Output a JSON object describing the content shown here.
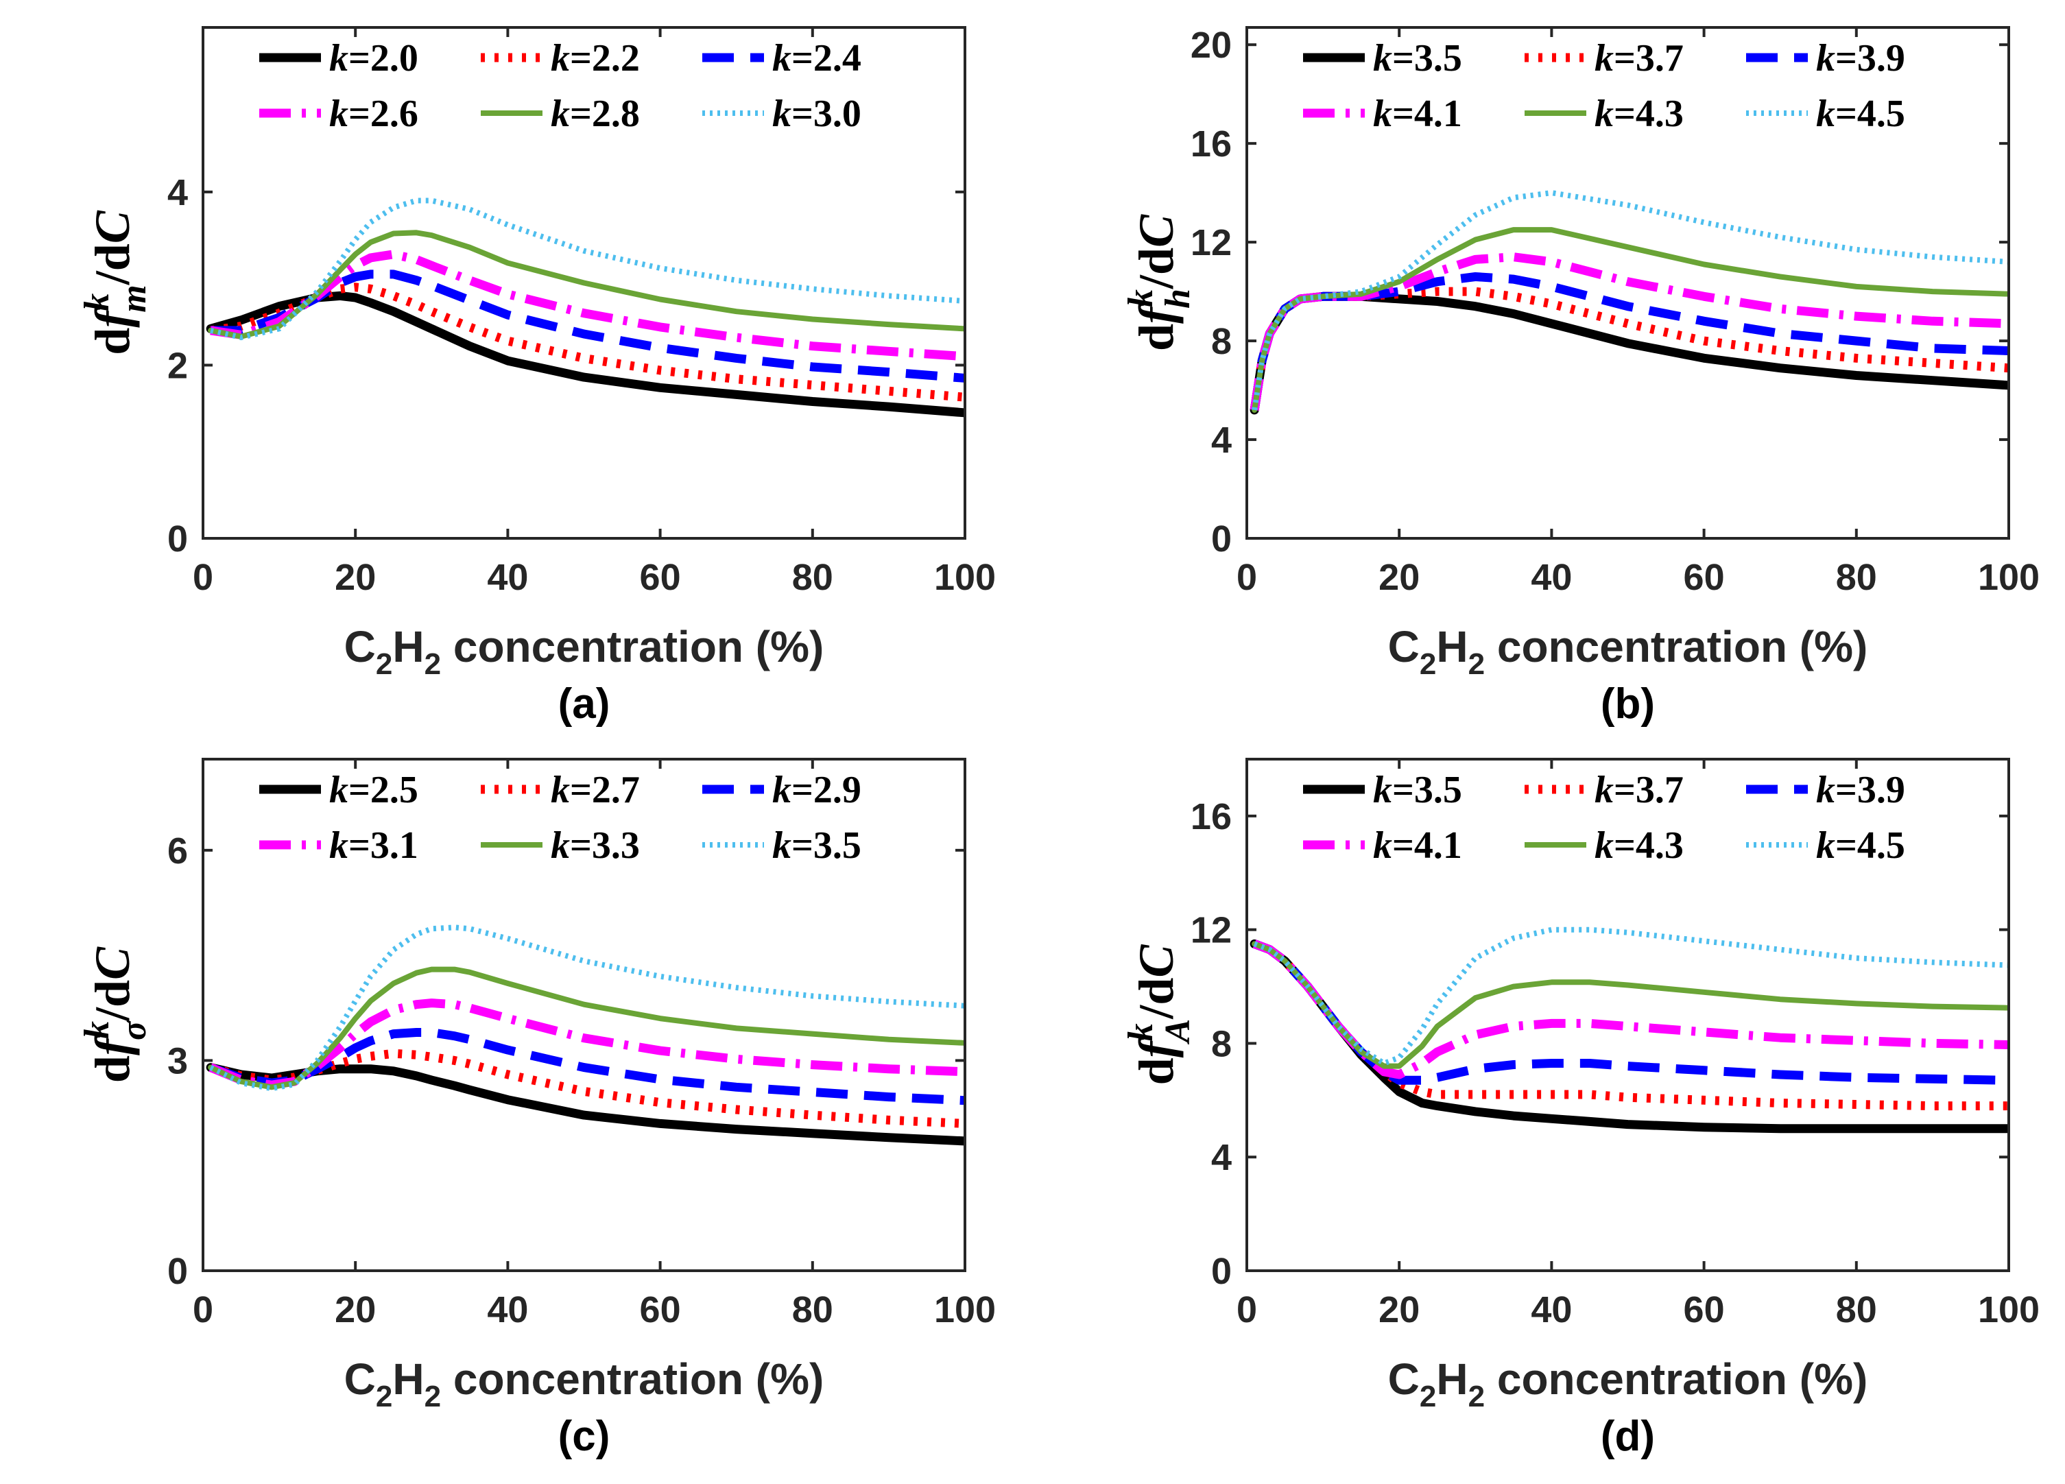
{
  "chart_data": [
    {
      "type": "line",
      "panel_label": "(a)",
      "xlabel": "C2H2 concentration (%)",
      "xlabel_parts": {
        "pre": "C",
        "sub1": "2",
        "mid": "H",
        "sub2": "2",
        "post": " concentration (%)"
      },
      "ylabel": "dfm^k/dC",
      "ylabel_parts": {
        "d1": "d",
        "f": "f",
        "sup": "k",
        "sub": "m",
        "slash": "/d",
        "C": "C"
      },
      "xlim": [
        0,
        100
      ],
      "ylim": [
        0,
        5.9
      ],
      "xticks": [
        0,
        20,
        40,
        60,
        80,
        100
      ],
      "yticks": [
        0,
        2,
        4
      ],
      "x": [
        1,
        5,
        10,
        15,
        18,
        20,
        22,
        25,
        28,
        30,
        35,
        40,
        50,
        60,
        70,
        80,
        90,
        100
      ],
      "series": [
        {
          "name": "k=2.0",
          "k_letter": "k",
          "k_value": "=2.0",
          "color": "#000000",
          "style": "solid",
          "width": 13,
          "values": [
            2.42,
            2.52,
            2.68,
            2.78,
            2.8,
            2.78,
            2.72,
            2.62,
            2.5,
            2.42,
            2.22,
            2.05,
            1.86,
            1.74,
            1.66,
            1.58,
            1.52,
            1.45
          ]
        },
        {
          "name": "k=2.2",
          "k_letter": "k",
          "k_value": "=2.2",
          "color": "#ff0000",
          "style": "dot",
          "width": 13,
          "values": [
            2.4,
            2.45,
            2.6,
            2.78,
            2.88,
            2.9,
            2.88,
            2.8,
            2.7,
            2.62,
            2.44,
            2.28,
            2.08,
            1.94,
            1.84,
            1.77,
            1.7,
            1.63
          ]
        },
        {
          "name": "k=2.4",
          "k_letter": "k",
          "k_value": "=2.4",
          "color": "#0000ff",
          "style": "dash",
          "width": 13,
          "values": [
            2.4,
            2.4,
            2.55,
            2.78,
            2.95,
            3.02,
            3.05,
            3.05,
            2.98,
            2.92,
            2.75,
            2.58,
            2.36,
            2.2,
            2.08,
            1.98,
            1.92,
            1.85
          ]
        },
        {
          "name": "k=2.6",
          "k_letter": "k",
          "k_value": "=2.6",
          "color": "#ff00ff",
          "style": "dashdot",
          "width": 13,
          "values": [
            2.4,
            2.35,
            2.5,
            2.8,
            3.02,
            3.15,
            3.24,
            3.28,
            3.22,
            3.15,
            2.98,
            2.82,
            2.6,
            2.44,
            2.32,
            2.22,
            2.16,
            2.1
          ]
        },
        {
          "name": "k=2.8",
          "k_letter": "k",
          "k_value": "=2.8",
          "color": "#6aa436",
          "style": "solid",
          "width": 8,
          "values": [
            2.4,
            2.33,
            2.45,
            2.82,
            3.1,
            3.28,
            3.42,
            3.52,
            3.53,
            3.5,
            3.36,
            3.18,
            2.95,
            2.76,
            2.62,
            2.53,
            2.47,
            2.42
          ]
        },
        {
          "name": "k=3.0",
          "k_letter": "k",
          "k_value": "=3.0",
          "color": "#4dbeee",
          "style": "fine",
          "width": 8,
          "values": [
            2.4,
            2.32,
            2.42,
            2.85,
            3.2,
            3.45,
            3.65,
            3.82,
            3.9,
            3.9,
            3.8,
            3.62,
            3.32,
            3.12,
            2.98,
            2.88,
            2.8,
            2.74
          ]
        }
      ]
    },
    {
      "type": "line",
      "panel_label": "(b)",
      "xlabel": "C2H2 concentration (%)",
      "xlabel_parts": {
        "pre": "C",
        "sub1": "2",
        "mid": "H",
        "sub2": "2",
        "post": " concentration (%)"
      },
      "ylabel": "dfh^k/dC",
      "ylabel_parts": {
        "d1": "d",
        "f": "f",
        "sup": "k",
        "sub": "h",
        "slash": "/d",
        "C": "C"
      },
      "xlim": [
        0,
        100
      ],
      "ylim": [
        0,
        20.7
      ],
      "xticks": [
        0,
        20,
        40,
        60,
        80,
        100
      ],
      "yticks": [
        0,
        4,
        8,
        12,
        16,
        20
      ],
      "x": [
        1,
        2,
        3,
        5,
        7,
        10,
        15,
        20,
        25,
        30,
        35,
        40,
        50,
        60,
        70,
        80,
        90,
        100
      ],
      "series": [
        {
          "name": "k=3.5",
          "k_letter": "k",
          "k_value": "=3.5",
          "color": "#000000",
          "style": "solid",
          "width": 13,
          "values": [
            5.2,
            7.2,
            8.3,
            9.3,
            9.7,
            9.8,
            9.8,
            9.7,
            9.6,
            9.4,
            9.1,
            8.7,
            7.9,
            7.3,
            6.9,
            6.6,
            6.4,
            6.2
          ]
        },
        {
          "name": "k=3.7",
          "k_letter": "k",
          "k_value": "=3.7",
          "color": "#ff0000",
          "style": "dot",
          "width": 13,
          "values": [
            5.2,
            7.2,
            8.3,
            9.3,
            9.7,
            9.8,
            9.8,
            9.9,
            10.0,
            10.0,
            9.8,
            9.5,
            8.7,
            8.0,
            7.6,
            7.3,
            7.1,
            6.9
          ]
        },
        {
          "name": "k=3.9",
          "k_letter": "k",
          "k_value": "=3.9",
          "color": "#0000ff",
          "style": "dash",
          "width": 13,
          "values": [
            5.2,
            7.2,
            8.3,
            9.3,
            9.7,
            9.8,
            9.8,
            10.0,
            10.4,
            10.6,
            10.5,
            10.2,
            9.4,
            8.8,
            8.3,
            8.0,
            7.7,
            7.6
          ]
        },
        {
          "name": "k=4.1",
          "k_letter": "k",
          "k_value": "=4.1",
          "color": "#ff00ff",
          "style": "dashdot",
          "width": 13,
          "values": [
            5.2,
            7.2,
            8.3,
            9.3,
            9.7,
            9.8,
            9.8,
            10.2,
            10.8,
            11.3,
            11.4,
            11.2,
            10.4,
            9.8,
            9.3,
            9.0,
            8.8,
            8.7
          ]
        },
        {
          "name": "k=4.3",
          "k_letter": "k",
          "k_value": "=4.3",
          "color": "#6aa436",
          "style": "solid",
          "width": 8,
          "values": [
            5.2,
            7.2,
            8.3,
            9.3,
            9.7,
            9.8,
            9.9,
            10.4,
            11.3,
            12.1,
            12.5,
            12.5,
            11.8,
            11.1,
            10.6,
            10.2,
            10.0,
            9.9
          ]
        },
        {
          "name": "k=4.5",
          "k_letter": "k",
          "k_value": "=4.5",
          "color": "#4dbeee",
          "style": "fine",
          "width": 8,
          "values": [
            5.2,
            7.2,
            8.3,
            9.3,
            9.7,
            9.8,
            10.0,
            10.6,
            11.9,
            13.1,
            13.8,
            14.0,
            13.5,
            12.8,
            12.2,
            11.7,
            11.4,
            11.2
          ]
        }
      ]
    },
    {
      "type": "line",
      "panel_label": "(c)",
      "xlabel": "C2H2 concentration (%)",
      "xlabel_parts": {
        "pre": "C",
        "sub1": "2",
        "mid": "H",
        "sub2": "2",
        "post": " concentration (%)"
      },
      "ylabel": "dfσ^k/dC",
      "ylabel_parts": {
        "d1": "d",
        "f": "f",
        "sup": "k",
        "sub": "σ",
        "slash": "/d",
        "C": "C"
      },
      "xlim": [
        0,
        100
      ],
      "ylim": [
        0,
        7.3
      ],
      "xticks": [
        0,
        20,
        40,
        60,
        80,
        100
      ],
      "yticks": [
        0,
        3,
        6
      ],
      "x": [
        1,
        5,
        9,
        12,
        15,
        18,
        20,
        22,
        25,
        28,
        30,
        33,
        35,
        40,
        50,
        60,
        70,
        80,
        90,
        100
      ],
      "series": [
        {
          "name": "k=2.5",
          "k_letter": "k",
          "k_value": "=2.5",
          "color": "#000000",
          "style": "solid",
          "width": 13,
          "values": [
            2.9,
            2.8,
            2.75,
            2.8,
            2.85,
            2.88,
            2.88,
            2.88,
            2.85,
            2.78,
            2.72,
            2.64,
            2.58,
            2.44,
            2.22,
            2.1,
            2.02,
            1.96,
            1.9,
            1.85
          ]
        },
        {
          "name": "k=2.7",
          "k_letter": "k",
          "k_value": "=2.7",
          "color": "#ff0000",
          "style": "dot",
          "width": 13,
          "values": [
            2.9,
            2.78,
            2.72,
            2.76,
            2.86,
            2.96,
            3.02,
            3.06,
            3.1,
            3.08,
            3.05,
            3.0,
            2.95,
            2.8,
            2.56,
            2.4,
            2.3,
            2.22,
            2.15,
            2.1
          ]
        },
        {
          "name": "k=2.9",
          "k_letter": "k",
          "k_value": "=2.9",
          "color": "#0000ff",
          "style": "dash",
          "width": 13,
          "values": [
            2.9,
            2.75,
            2.68,
            2.72,
            2.88,
            3.05,
            3.18,
            3.28,
            3.38,
            3.4,
            3.4,
            3.35,
            3.3,
            3.15,
            2.9,
            2.73,
            2.62,
            2.55,
            2.48,
            2.43
          ]
        },
        {
          "name": "k=3.1",
          "k_letter": "k",
          "k_value": "=3.1",
          "color": "#ff00ff",
          "style": "dashdot",
          "width": 13,
          "values": [
            2.9,
            2.72,
            2.65,
            2.7,
            2.92,
            3.18,
            3.38,
            3.55,
            3.72,
            3.8,
            3.82,
            3.8,
            3.75,
            3.6,
            3.32,
            3.14,
            3.02,
            2.94,
            2.88,
            2.84
          ]
        },
        {
          "name": "k=3.3",
          "k_letter": "k",
          "k_value": "=3.3",
          "color": "#6aa436",
          "style": "solid",
          "width": 8,
          "values": [
            2.9,
            2.7,
            2.62,
            2.68,
            2.96,
            3.32,
            3.6,
            3.85,
            4.1,
            4.25,
            4.3,
            4.3,
            4.26,
            4.1,
            3.8,
            3.6,
            3.46,
            3.38,
            3.3,
            3.25
          ]
        },
        {
          "name": "k=3.5",
          "k_letter": "k",
          "k_value": "=3.5",
          "color": "#4dbeee",
          "style": "fine",
          "width": 8,
          "values": [
            2.9,
            2.68,
            2.6,
            2.66,
            3.0,
            3.48,
            3.85,
            4.2,
            4.58,
            4.8,
            4.88,
            4.9,
            4.88,
            4.74,
            4.42,
            4.2,
            4.04,
            3.92,
            3.84,
            3.78
          ]
        }
      ]
    },
    {
      "type": "line",
      "panel_label": "(d)",
      "xlabel": "C2H2 concentration (%)",
      "xlabel_parts": {
        "pre": "C",
        "sub1": "2",
        "mid": "H",
        "sub2": "2",
        "post": " concentration (%)"
      },
      "ylabel": "dfA^k/dC",
      "ylabel_parts": {
        "d1": "d",
        "f": "f",
        "sup": "k",
        "sub": "A",
        "slash": "/d",
        "C": "C"
      },
      "xlim": [
        0,
        100
      ],
      "ylim": [
        0,
        18
      ],
      "xticks": [
        0,
        20,
        40,
        60,
        80,
        100
      ],
      "yticks": [
        0,
        4,
        8,
        12,
        16
      ],
      "x": [
        1,
        3,
        5,
        8,
        10,
        12,
        15,
        18,
        20,
        23,
        25,
        30,
        35,
        40,
        45,
        50,
        60,
        70,
        80,
        90,
        100
      ],
      "series": [
        {
          "name": "k=3.5",
          "k_letter": "k",
          "k_value": "=3.5",
          "color": "#000000",
          "style": "solid",
          "width": 13,
          "values": [
            11.5,
            11.3,
            10.9,
            10.0,
            9.3,
            8.6,
            7.6,
            6.8,
            6.3,
            5.9,
            5.8,
            5.6,
            5.45,
            5.35,
            5.25,
            5.15,
            5.05,
            5.0,
            5.0,
            5.0,
            5.0
          ]
        },
        {
          "name": "k=3.7",
          "k_letter": "k",
          "k_value": "=3.7",
          "color": "#ff0000",
          "style": "dot",
          "width": 13,
          "values": [
            11.5,
            11.3,
            10.9,
            10.0,
            9.3,
            8.6,
            7.7,
            7.0,
            6.6,
            6.3,
            6.2,
            6.2,
            6.2,
            6.2,
            6.2,
            6.1,
            6.0,
            5.9,
            5.85,
            5.8,
            5.8
          ]
        },
        {
          "name": "k=3.9",
          "k_letter": "k",
          "k_value": "=3.9",
          "color": "#0000ff",
          "style": "dash",
          "width": 13,
          "values": [
            11.5,
            11.3,
            10.9,
            10.0,
            9.3,
            8.6,
            7.7,
            7.0,
            6.7,
            6.7,
            6.8,
            7.1,
            7.25,
            7.3,
            7.3,
            7.2,
            7.05,
            6.9,
            6.8,
            6.75,
            6.7
          ]
        },
        {
          "name": "k=4.1",
          "k_letter": "k",
          "k_value": "=4.1",
          "color": "#ff00ff",
          "style": "dashdot",
          "width": 13,
          "values": [
            11.5,
            11.3,
            10.9,
            10.0,
            9.3,
            8.6,
            7.7,
            7.0,
            6.9,
            7.3,
            7.7,
            8.3,
            8.6,
            8.7,
            8.7,
            8.6,
            8.4,
            8.2,
            8.1,
            8.0,
            7.95
          ]
        },
        {
          "name": "k=4.3",
          "k_letter": "k",
          "k_value": "=4.3",
          "color": "#6aa436",
          "style": "solid",
          "width": 8,
          "values": [
            11.5,
            11.3,
            10.9,
            10.0,
            9.3,
            8.6,
            7.7,
            7.2,
            7.2,
            7.9,
            8.6,
            9.6,
            10.0,
            10.15,
            10.15,
            10.05,
            9.8,
            9.55,
            9.4,
            9.3,
            9.25
          ]
        },
        {
          "name": "k=4.5",
          "k_letter": "k",
          "k_value": "=4.5",
          "color": "#4dbeee",
          "style": "fine",
          "width": 8,
          "values": [
            11.5,
            11.3,
            10.9,
            10.0,
            9.3,
            8.6,
            7.8,
            7.3,
            7.5,
            8.5,
            9.4,
            11.0,
            11.7,
            12.0,
            12.0,
            11.9,
            11.6,
            11.3,
            11.0,
            10.85,
            10.75
          ]
        }
      ]
    }
  ]
}
